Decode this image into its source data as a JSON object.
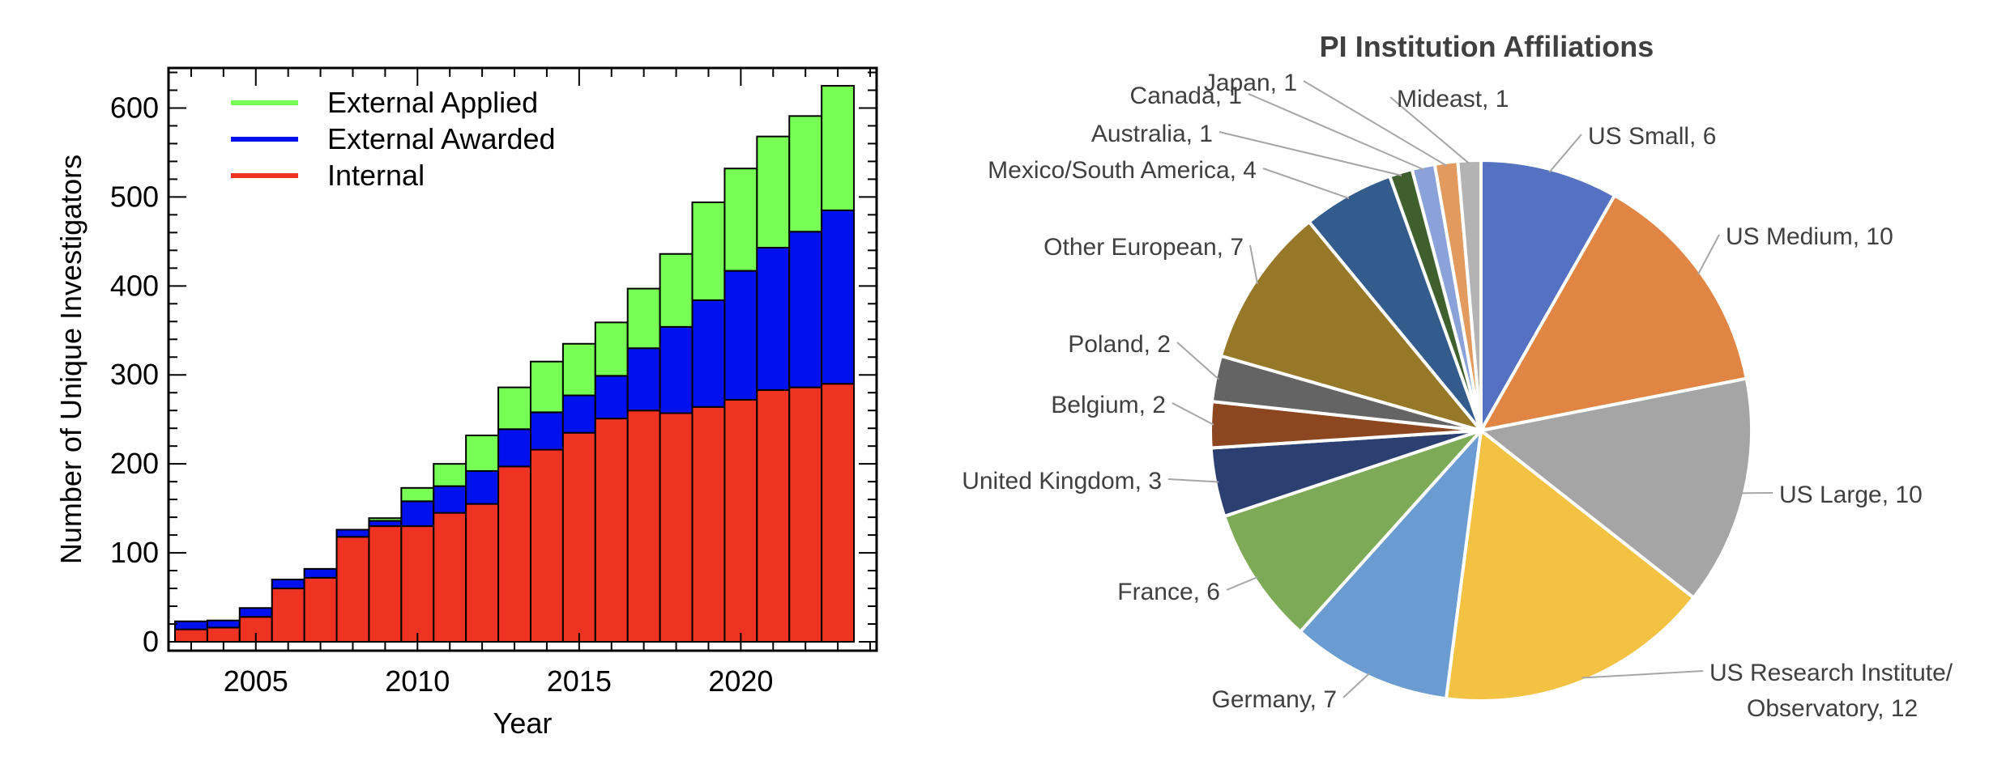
{
  "chart_data": [
    {
      "type": "bar",
      "stacked": true,
      "xlabel": "Year",
      "ylabel": "Number of Unique Investigators",
      "x": [
        2003,
        2004,
        2005,
        2006,
        2007,
        2008,
        2009,
        2010,
        2011,
        2012,
        2013,
        2014,
        2015,
        2016,
        2017,
        2018,
        2019,
        2020,
        2021,
        2022,
        2023
      ],
      "xticks": [
        2005,
        2010,
        2015,
        2020
      ],
      "yticks": [
        0,
        100,
        200,
        300,
        400,
        500,
        600
      ],
      "xlim": [
        2002.3,
        2024.2
      ],
      "ylim": [
        -10,
        645
      ],
      "legend_position": "top-left",
      "series": [
        {
          "name": "Internal",
          "color": "#EE3322",
          "values": [
            14,
            16,
            28,
            60,
            72,
            118,
            130,
            130,
            145,
            155,
            197,
            216,
            235,
            251,
            260,
            257,
            264,
            272,
            283,
            286,
            290
          ]
        },
        {
          "name": "External Awarded",
          "color": "#0011EE",
          "values": [
            9,
            8,
            10,
            10,
            10,
            8,
            6,
            28,
            30,
            37,
            42,
            42,
            42,
            48,
            70,
            97,
            120,
            145,
            160,
            175,
            195
          ]
        },
        {
          "name": "External Applied",
          "color": "#77FF55",
          "values": [
            0,
            0,
            0,
            0,
            0,
            0,
            3,
            15,
            25,
            40,
            47,
            57,
            58,
            60,
            67,
            82,
            110,
            115,
            125,
            130,
            140
          ]
        }
      ],
      "legend": [
        {
          "label": "External Applied",
          "color": "#77FF55"
        },
        {
          "label": "External Awarded",
          "color": "#0011EE"
        },
        {
          "label": "Internal",
          "color": "#EE3322"
        }
      ],
      "grid": false
    },
    {
      "type": "pie",
      "title": "PI Institution Affiliations",
      "slices": [
        {
          "label": "US Small, 6",
          "value": 6,
          "color": "#5572C2"
        },
        {
          "label": "US Medium, 10",
          "value": 10,
          "color": "#E08544"
        },
        {
          "label": "US Large, 10",
          "value": 10,
          "color": "#A5A5A5"
        },
        {
          "label": "US Research Institute/ Observatory, 12",
          "value": 12,
          "color": "#F3C242",
          "lines": [
            "US Research Institute/",
            "Observatory, 12"
          ]
        },
        {
          "label": "Germany, 7",
          "value": 7,
          "color": "#6A9BD1"
        },
        {
          "label": "France, 6",
          "value": 6,
          "color": "#7DAA56"
        },
        {
          "label": "United Kingdom, 3",
          "value": 3,
          "color": "#2B3F70"
        },
        {
          "label": "Belgium, 2",
          "value": 2,
          "color": "#8C4721"
        },
        {
          "label": "Poland, 2",
          "value": 2,
          "color": "#646464"
        },
        {
          "label": "Other European, 7",
          "value": 7,
          "color": "#977828"
        },
        {
          "label": "Mexico/South America, 4",
          "value": 4,
          "color": "#335C8C"
        },
        {
          "label": "Australia, 1",
          "value": 1,
          "color": "#3F5F2C"
        },
        {
          "label": "Canada, 1",
          "value": 1,
          "color": "#8AA2D9"
        },
        {
          "label": "Japan, 1",
          "value": 1,
          "color": "#E39A5F"
        },
        {
          "label": "Mideast, 1",
          "value": 1,
          "color": "#B3B3B3"
        }
      ],
      "legend": false
    }
  ]
}
